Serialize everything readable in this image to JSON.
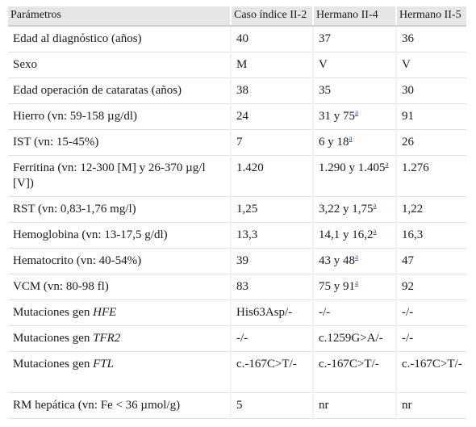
{
  "headers": [
    "Parámetros",
    "Caso índice II-2",
    "Hermano II-4",
    "Hermano II-5"
  ],
  "footnote_marker": "a",
  "rows": [
    {
      "param": "Edad al diagnóstico (años)",
      "v1": "40",
      "v2": "37",
      "v3": "36"
    },
    {
      "param": "Sexo",
      "v1": "M",
      "v2": "V",
      "v3": "V"
    },
    {
      "param": "Edad operación de cataratas (años)",
      "v1": "38",
      "v2": "35",
      "v3": "30"
    },
    {
      "param": "Hierro (vn: 59-158 µg/dl)",
      "v1": "24",
      "v2": "31 y 75",
      "v3": "91"
    },
    {
      "param": "IST (vn: 15-45%)",
      "v1": "7",
      "v2": "6 y 18",
      "v3": "26"
    },
    {
      "param": "Ferritina (vn: 12-300 [M] y 26-370 µg/l [V])",
      "v1": "1.420",
      "v2": "1.290 y 1.405",
      "v3": "1.276"
    },
    {
      "param": "RST (vn: 0,83-1,76 mg/l)",
      "v1": "1,25",
      "v2": "3,22 y 1,75",
      "v3": "1,22"
    },
    {
      "param": "Hemoglobina (vn: 13-17,5 g/dl)",
      "v1": "13,3",
      "v2": "14,1 y 16,2",
      "v3": "16,3"
    },
    {
      "param": "Hematocrito (vn: 40-54%)",
      "v1": "39",
      "v2": "43 y 48",
      "v3": "47"
    },
    {
      "param": "VCM (vn: 80-98 fl)",
      "v1": "83",
      "v2": "75 y 91",
      "v3": "92"
    },
    {
      "param_prefix": "Mutaciones gen ",
      "gene": "HFE",
      "v1": "His63Asp/-",
      "v2": "-/-",
      "v3": "-/-"
    },
    {
      "param_prefix": "Mutaciones gen ",
      "gene": "TFR2",
      "v1": "-/-",
      "v2": "c.1259G>A/-",
      "v3": "-/-"
    },
    {
      "param_prefix": "Mutaciones gen ",
      "gene": "FTL",
      "v1": "c.-167C>T/-",
      "v2": "c.-167C>T/-",
      "v3": "c.-167C>T/-"
    },
    {
      "param": "RM hepática (vn: Fe < 36 µmol/g)",
      "v1": "5",
      "v2": "nr",
      "v3": "nr"
    }
  ]
}
